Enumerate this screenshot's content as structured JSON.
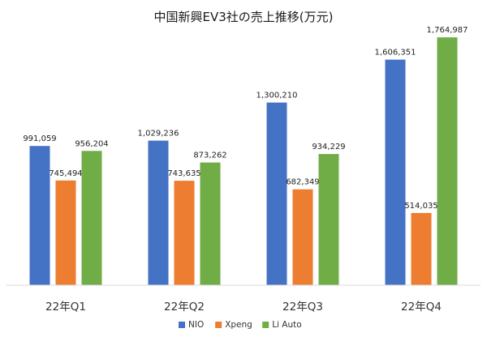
{
  "chart_data": {
    "type": "bar",
    "title": "中国新興EV3社の売上推移(万元)",
    "xlabel": "",
    "ylabel": "",
    "categories": [
      "22年Q1",
      "22年Q2",
      "22年Q3",
      "22年Q4"
    ],
    "series": [
      {
        "name": "NIO",
        "color": "#4472C4",
        "values": [
          991059,
          1029236,
          1300210,
          1606351
        ],
        "labels": [
          "991,059",
          "1,029,236",
          "1,300,210",
          "1,606,351"
        ]
      },
      {
        "name": "Xpeng",
        "color": "#ED7D31",
        "values": [
          745494,
          743635,
          682349,
          514035
        ],
        "labels": [
          "745,494",
          "743,635",
          "682,349",
          "514,035"
        ]
      },
      {
        "name": "Li Auto",
        "color": "#70AD47",
        "values": [
          956204,
          873262,
          934229,
          1764987
        ],
        "labels": [
          "956,204",
          "873,262",
          "934,229",
          "1,764,987"
        ]
      }
    ],
    "ylim": [
      0,
      1800000
    ],
    "grid": false,
    "legend_position": "bottom-center"
  }
}
